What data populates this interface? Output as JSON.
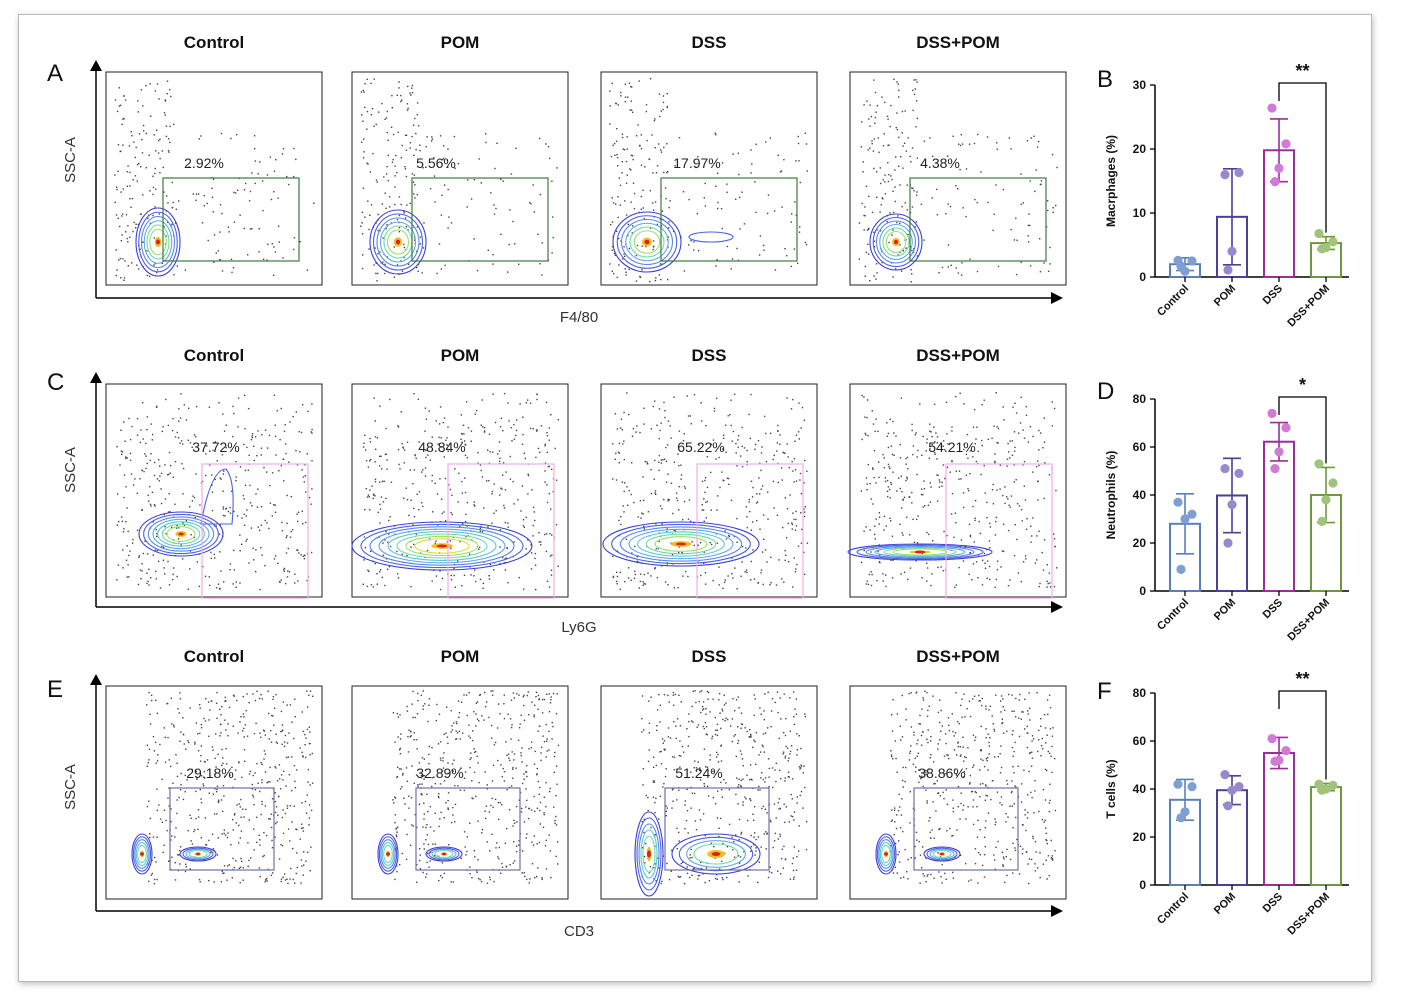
{
  "groups": [
    "Control",
    "POM",
    "DSS",
    "DSS+POM"
  ],
  "colors": {
    "Control": "#5b80b9",
    "POM": "#4b3f96",
    "DSS": "#9b2d9c",
    "DSS+POM": "#6e9a3d",
    "gate_macrophage": "#3c7a3c",
    "gate_neutrophil": "#f2aaf0",
    "gate_tcell": "#7070a8"
  },
  "flow_rows": [
    {
      "panel": "A",
      "ylabel": "SSC-A",
      "xlabel": "F4/80",
      "percents": [
        "2.92%",
        "5.56%",
        "17.97%",
        "4.38%"
      ]
    },
    {
      "panel": "C",
      "ylabel": "SSC-A",
      "xlabel": "Ly6G",
      "percents": [
        "37.72%",
        "48.84%",
        "65.22%",
        "54.21%"
      ]
    },
    {
      "panel": "E",
      "ylabel": "SSC-A",
      "xlabel": "CD3",
      "percents": [
        "29.18%",
        "32.89%",
        "51.24%",
        "38.86%"
      ]
    }
  ],
  "chart_data": [
    {
      "panel": "B",
      "type": "bar",
      "ylabel": "Macrphages (%)",
      "categories": [
        "Control",
        "POM",
        "DSS",
        "DSS+POM"
      ],
      "values": [
        2.0,
        9.4,
        19.8,
        5.3
      ],
      "sd": [
        1.0,
        7.5,
        4.9,
        1.0
      ],
      "points": [
        [
          2.6,
          2.5,
          0.9,
          1.7
        ],
        [
          16.0,
          16.3,
          4.0,
          1.1
        ],
        [
          26.4,
          20.8,
          17.0,
          14.9
        ],
        [
          6.8,
          5.5,
          4.6,
          4.4
        ]
      ],
      "ylim": [
        0,
        30
      ],
      "yticks": [
        0,
        10,
        20,
        30
      ],
      "significance": {
        "between": [
          "DSS",
          "DSS+POM"
        ],
        "label": "**"
      }
    },
    {
      "panel": "D",
      "type": "bar",
      "ylabel": "Neutrophils (%)",
      "categories": [
        "Control",
        "POM",
        "DSS",
        "DSS+POM"
      ],
      "values": [
        28.0,
        39.8,
        62.2,
        40.0
      ],
      "sd": [
        12.5,
        15.5,
        8.0,
        11.5
      ],
      "points": [
        [
          37.0,
          32.0,
          30.0,
          9.0
        ],
        [
          51.0,
          49.0,
          36.0,
          20.0
        ],
        [
          74.0,
          68.0,
          58.0,
          51.0
        ],
        [
          53.0,
          45.0,
          38.0,
          29.0
        ]
      ],
      "ylim": [
        0,
        80
      ],
      "yticks": [
        0,
        20,
        40,
        60,
        80
      ],
      "significance": {
        "between": [
          "DSS",
          "DSS+POM"
        ],
        "label": "*"
      }
    },
    {
      "panel": "F",
      "type": "bar",
      "ylabel": "T cells (%)",
      "categories": [
        "Control",
        "POM",
        "DSS",
        "DSS+POM"
      ],
      "values": [
        35.5,
        39.5,
        55.0,
        40.8
      ],
      "sd": [
        8.5,
        6.0,
        6.5,
        1.5
      ],
      "points": [
        [
          42.0,
          41.0,
          30.5,
          28.0
        ],
        [
          46.0,
          41.0,
          39.5,
          33.0
        ],
        [
          61.0,
          56.0,
          52.0,
          51.5
        ],
        [
          42.0,
          41.5,
          40.0,
          39.5
        ]
      ],
      "ylim": [
        0,
        80
      ],
      "yticks": [
        0,
        20,
        40,
        60,
        80
      ],
      "significance": {
        "between": [
          "DSS",
          "DSS+POM"
        ],
        "label": "**"
      }
    }
  ]
}
